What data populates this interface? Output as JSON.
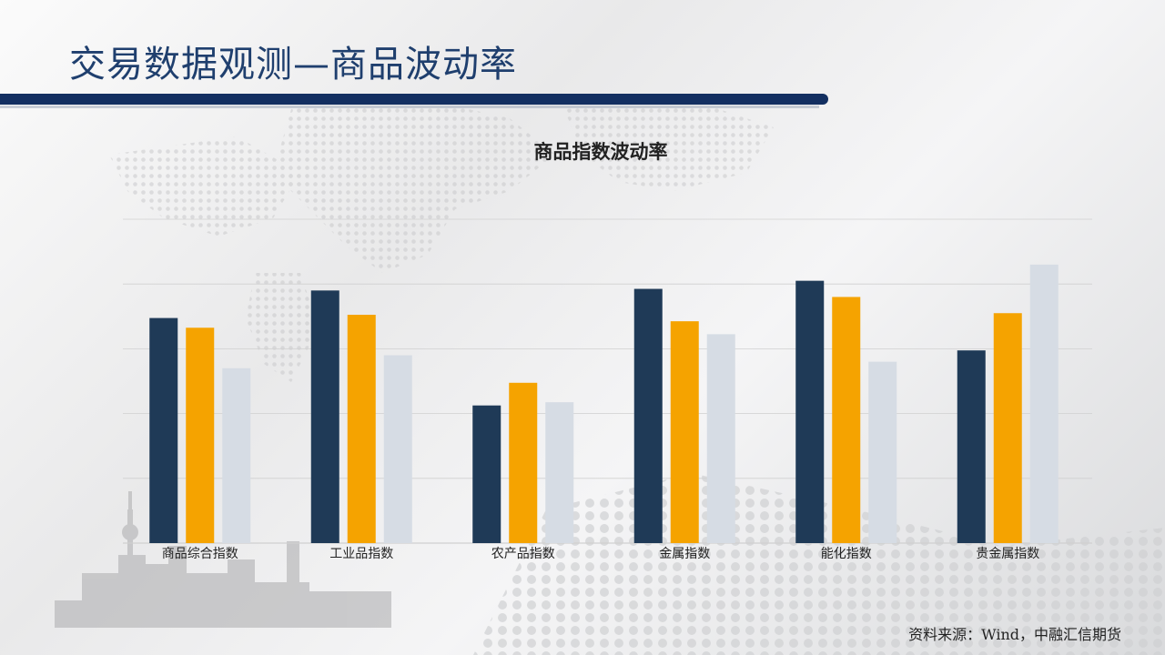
{
  "slide": {
    "title": "交易数据观测—商品波动率",
    "source": "资料来源：Wind，中融汇信期货"
  },
  "colors": {
    "title_text": "#1f3f6e",
    "title_bar": "#132f61",
    "series_1": "#1f3a57",
    "series_2": "#f5a300",
    "series_3": "#d6dce4",
    "gridline": "#d0d0d0"
  },
  "chart_data": {
    "type": "bar",
    "title": "商品指数波动率",
    "categories": [
      "商品综合指数",
      "工业品指数",
      "农产品指数",
      "金属指数",
      "能化指数",
      "贵金属指数"
    ],
    "series": [
      {
        "values": [
          13.9,
          15.6,
          8.5,
          15.7,
          16.2,
          11.9
        ]
      },
      {
        "values": [
          13.3,
          14.1,
          9.9,
          13.7,
          15.2,
          14.2
        ]
      },
      {
        "values": [
          10.8,
          11.6,
          8.7,
          12.9,
          11.2,
          17.2
        ]
      }
    ],
    "ylim": [
      0,
      20
    ],
    "grid": true,
    "legend": false,
    "xlabel": "",
    "ylabel": ""
  }
}
